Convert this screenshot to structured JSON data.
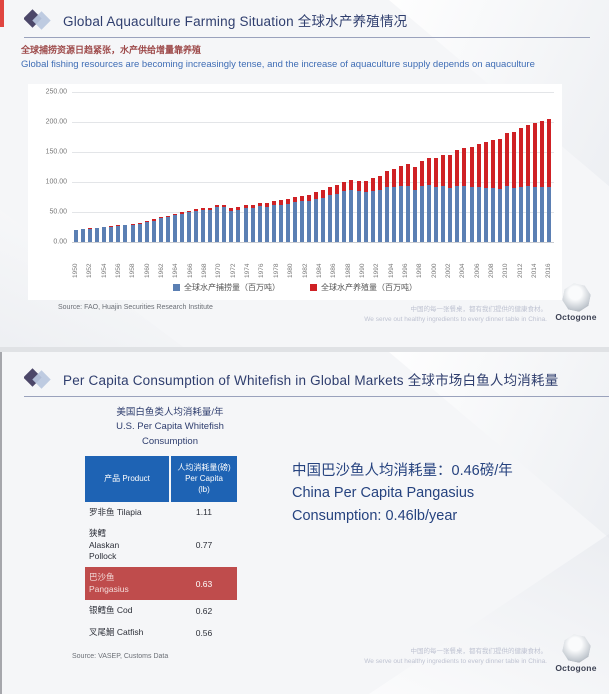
{
  "brand": {
    "logo_text": "Octogone",
    "tagline_cn": "中国的每一张餐桌，都有我们提供的健康食材。",
    "tagline_en": "We serve out healthy ingredients to every dinner table in China."
  },
  "slide1": {
    "title": "Global Aquaculture Farming Situation 全球水产养殖情况",
    "subtitle_cn": "全球捕捞资源日趋紧张，水产供给增量靠养殖",
    "subtitle_en": "Global fishing resources are becoming increasingly tense, and the increase of aquaculture supply depends on aquaculture",
    "source": "Source: FAO, Huajin Securities Research Institute"
  },
  "chart_data": {
    "type": "bar",
    "stacked": true,
    "title": "",
    "xlabel": "",
    "ylabel": "",
    "ylim": [
      0,
      250
    ],
    "yticks": [
      "0.00",
      "50.00",
      "100.00",
      "150.00",
      "200.00",
      "250.00"
    ],
    "grid": true,
    "legend_position": "bottom",
    "xtick_every": 2,
    "x": [
      1950,
      1951,
      1952,
      1953,
      1954,
      1955,
      1956,
      1957,
      1958,
      1959,
      1960,
      1961,
      1962,
      1963,
      1964,
      1965,
      1966,
      1967,
      1968,
      1969,
      1970,
      1971,
      1972,
      1973,
      1974,
      1975,
      1976,
      1977,
      1978,
      1979,
      1980,
      1981,
      1982,
      1983,
      1984,
      1985,
      1986,
      1987,
      1988,
      1989,
      1990,
      1991,
      1992,
      1993,
      1994,
      1995,
      1996,
      1997,
      1998,
      1999,
      2000,
      2001,
      2002,
      2003,
      2004,
      2005,
      2006,
      2007,
      2008,
      2009,
      2010,
      2011,
      2012,
      2013,
      2014,
      2015,
      2016,
      2017
    ],
    "series": [
      {
        "name": "全球水产捕捞量（百万吨）",
        "color": "#5b7fb3",
        "values": [
          19.2,
          21.0,
          22.4,
          23.1,
          24.4,
          25.6,
          27.0,
          27.6,
          28.6,
          30.4,
          32.6,
          35.8,
          39.2,
          40.9,
          44.8,
          46.6,
          49.4,
          52.3,
          53.8,
          52.7,
          58.2,
          57.9,
          52.4,
          53.3,
          56.1,
          56.2,
          59.7,
          58.9,
          61.1,
          62.0,
          63.1,
          66.2,
          67.7,
          68.0,
          72.2,
          74.1,
          79.0,
          79.8,
          85.0,
          86.0,
          84.3,
          83.5,
          84.8,
          86.1,
          91.2,
          91.3,
          93.0,
          93.2,
          86.6,
          92.8,
          94.8,
          91.8,
          92.7,
          89.7,
          93.8,
          93.5,
          91.8,
          91.9,
          90.7,
          89.8,
          88.6,
          92.9,
          90.8,
          92.2,
          92.7,
          92.5,
          90.9,
          92.5
        ]
      },
      {
        "name": "全球水产养殖量（百万吨）",
        "color": "#cf2125",
        "values": [
          0.6,
          0.7,
          0.8,
          0.9,
          1.0,
          1.1,
          1.3,
          1.4,
          1.6,
          1.7,
          1.9,
          2.0,
          2.2,
          2.4,
          2.6,
          2.8,
          3.0,
          3.2,
          3.5,
          3.7,
          4.0,
          4.3,
          4.6,
          4.9,
          5.3,
          5.7,
          6.1,
          6.6,
          7.0,
          7.5,
          8.0,
          8.6,
          9.2,
          9.9,
          10.9,
          12.0,
          13.2,
          14.5,
          15.8,
          16.6,
          17.3,
          18.5,
          21.2,
          24.3,
          27.8,
          31.1,
          33.8,
          36.1,
          39.1,
          43.0,
          45.7,
          48.5,
          51.6,
          54.9,
          59.0,
          62.6,
          66.7,
          70.8,
          75.2,
          79.5,
          83.7,
          88.0,
          93.0,
          98.0,
          103.0,
          106.0,
          110.2,
          111.9
        ]
      }
    ]
  },
  "slide2": {
    "title": "Per Capita Consumption of Whitefish in Global Markets 全球市场白鱼人均消耗量",
    "subhead": "美国白鱼类人均消耗量/年\nU.S. Per Capita Whitefish\nConsumption",
    "table": {
      "headers": [
        "产品 Product",
        "人均消耗量(磅)\nPer Capita\n(lb)"
      ],
      "rows": [
        {
          "product": "罗非鱼 Tilapia",
          "value": "1.11",
          "highlight": false
        },
        {
          "product": "狭鳕\nAlaskan\nPollock",
          "value": "0.77",
          "highlight": false
        },
        {
          "product": "巴沙鱼\nPangasius",
          "value": "0.63",
          "highlight": true
        },
        {
          "product": "银鳕鱼 Cod",
          "value": "0.62",
          "highlight": false
        },
        {
          "product": "叉尾鮰 Catfish",
          "value": "0.56",
          "highlight": false
        }
      ]
    },
    "bigtext_lines": [
      "中国巴沙鱼人均消耗量：0.46磅/年",
      "China Per Capita Pangasius",
      "Consumption: 0.46lb/year"
    ],
    "source": "Source: VASEP, Customs Data"
  }
}
